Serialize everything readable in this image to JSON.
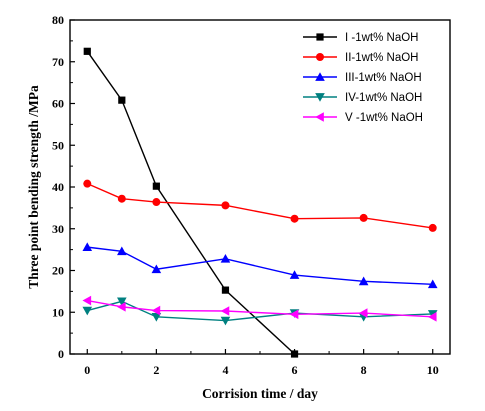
{
  "chart_data": {
    "type": "line",
    "xlabel": "Corrision time / day",
    "ylabel": "Three point bending strength /MPa",
    "xlim": [
      -0.5,
      10.5
    ],
    "ylim": [
      0,
      80
    ],
    "x_ticks": [
      0,
      2,
      4,
      6,
      8,
      10
    ],
    "y_ticks": [
      0,
      10,
      20,
      30,
      40,
      50,
      60,
      70,
      80
    ],
    "grid": false,
    "legend_position": "top-right",
    "series": [
      {
        "name": "I -1wt% NaOH",
        "marker": "square",
        "color": "#000000",
        "x": [
          0,
          1,
          2,
          4,
          6
        ],
        "y": [
          72.5,
          60.8,
          40.2,
          15.3,
          0
        ]
      },
      {
        "name": "II-1wt% NaOH",
        "marker": "circle",
        "color": "#ff0000",
        "x": [
          0,
          1,
          2,
          4,
          6,
          8,
          10
        ],
        "y": [
          40.8,
          37.2,
          36.4,
          35.6,
          32.4,
          32.6,
          30.2
        ]
      },
      {
        "name": "III-1wt% NaOH",
        "marker": "triangle-up",
        "color": "#0000ff",
        "x": [
          0,
          1,
          2,
          4,
          6,
          8,
          10
        ],
        "y": [
          25.6,
          24.6,
          20.3,
          22.8,
          18.9,
          17.4,
          16.7
        ]
      },
      {
        "name": "IV-1wt% NaOH",
        "marker": "triangle-down",
        "color": "#008080",
        "x": [
          0,
          1,
          2,
          4,
          6,
          8,
          10
        ],
        "y": [
          10.4,
          12.6,
          8.9,
          8.0,
          9.8,
          8.9,
          9.6
        ]
      },
      {
        "name": "V -1wt% NaOH",
        "marker": "triangle-left",
        "color": "#ff00ff",
        "x": [
          0,
          1,
          2,
          4,
          6,
          8,
          10
        ],
        "y": [
          12.8,
          11.3,
          10.4,
          10.3,
          9.5,
          9.8,
          8.9
        ]
      }
    ]
  }
}
